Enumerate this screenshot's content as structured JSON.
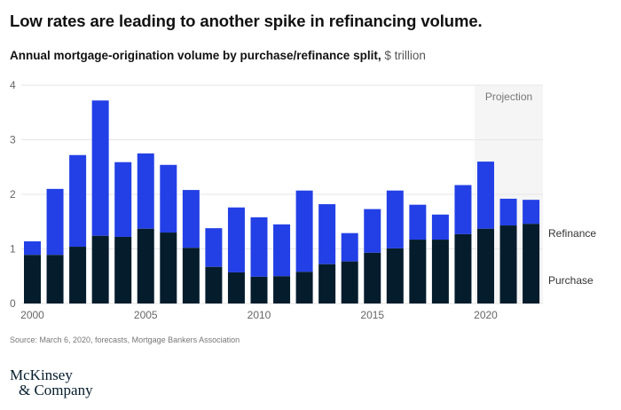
{
  "header": {
    "title": "Low rates are leading to another spike in refinancing volume.",
    "subtitle_bold": "Annual mortgage-origination volume by purchase/refinance split,",
    "subtitle_unit": " $ trillion"
  },
  "footer": {
    "source": "Source: March 6, 2020, forecasts, Mortgage Bankers Association",
    "logo_line1": "McKinsey",
    "logo_line2": "& Company"
  },
  "colors": {
    "purchase": "#051c2c",
    "refinance": "#2340e6",
    "projection_bg": "#f5f5f5",
    "grid": "#e6e6e6"
  },
  "chart_data": {
    "type": "bar",
    "stacked": true,
    "title": "Low rates are leading to another spike in refinancing volume.",
    "subtitle": "Annual mortgage-origination volume by purchase/refinance split, $ trillion",
    "xlabel": "",
    "ylabel": "$ trillion",
    "ylim": [
      0,
      4
    ],
    "yticks": [
      0,
      1,
      2,
      3,
      4
    ],
    "grid": true,
    "categories": [
      "2000",
      "2001",
      "2002",
      "2003",
      "2004",
      "2005",
      "2006",
      "2007",
      "2008",
      "2009",
      "2010",
      "2011",
      "2012",
      "2013",
      "2014",
      "2015",
      "2016",
      "2017",
      "2018",
      "2019",
      "2020",
      "2021",
      "2022"
    ],
    "xtick_labels": [
      {
        "index": 0,
        "label": "2000"
      },
      {
        "index": 5,
        "label": "2005"
      },
      {
        "index": 10,
        "label": "2010"
      },
      {
        "index": 15,
        "label": "2015"
      },
      {
        "index": 20,
        "label": "2020"
      }
    ],
    "series": [
      {
        "name": "Purchase",
        "values": [
          0.89,
          0.89,
          1.04,
          1.24,
          1.22,
          1.37,
          1.3,
          1.02,
          0.67,
          0.57,
          0.49,
          0.5,
          0.58,
          0.72,
          0.77,
          0.93,
          1.01,
          1.17,
          1.17,
          1.27,
          1.37,
          1.43,
          1.46
        ]
      },
      {
        "name": "Refinance",
        "values": [
          0.25,
          1.21,
          1.68,
          2.48,
          1.37,
          1.38,
          1.24,
          1.06,
          0.71,
          1.19,
          1.09,
          0.95,
          1.49,
          1.1,
          0.52,
          0.8,
          1.06,
          0.64,
          0.46,
          0.9,
          1.23,
          0.49,
          0.44
        ]
      }
    ],
    "totals": [
      1.14,
      2.1,
      2.72,
      3.72,
      2.59,
      2.75,
      2.54,
      2.08,
      1.38,
      1.76,
      1.58,
      1.45,
      2.07,
      1.82,
      1.29,
      1.73,
      2.07,
      1.81,
      1.63,
      2.17,
      2.6,
      1.92,
      1.9
    ],
    "projection": {
      "label": "Projection",
      "start_index": 20,
      "end_index": 22
    },
    "legend": "right, direct labels beside last bar"
  }
}
